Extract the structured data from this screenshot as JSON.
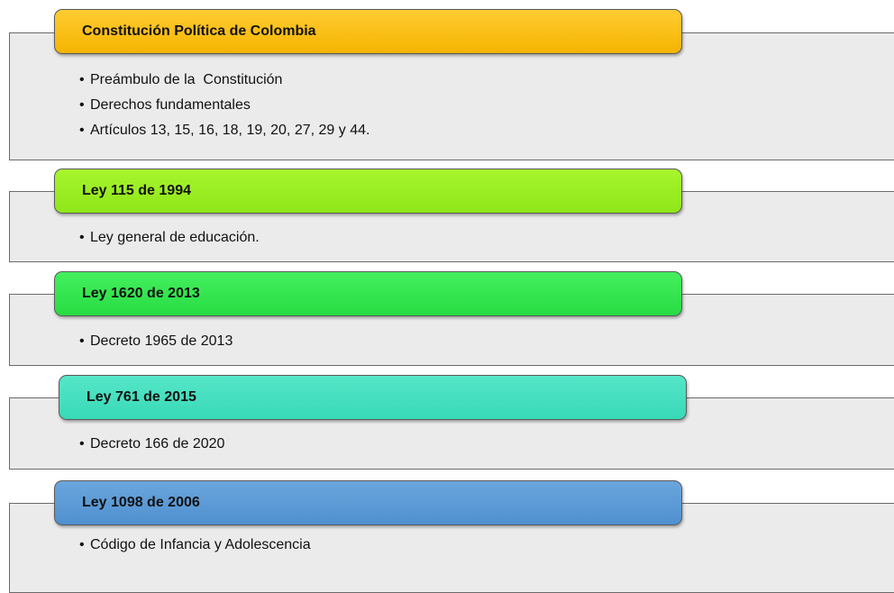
{
  "sections": [
    {
      "title": "Constitución Política de Colombia",
      "items": [
        "Preámbulo de la  Constitución",
        "Derechos fundamentales",
        "Artículos 13, 15, 16, 18, 19, 20, 27, 29 y 44."
      ]
    },
    {
      "title": "Ley 115 de 1994",
      "items": [
        "Ley general de educación."
      ]
    },
    {
      "title": "Ley 1620 de 2013",
      "items": [
        "Decreto 1965 de 2013"
      ]
    },
    {
      "title": "Ley 761 de 2015",
      "items": [
        "Decreto 166 de 2020"
      ]
    },
    {
      "title": "Ley 1098 de 2006",
      "items": [
        "Código de Infancia y Adolescencia"
      ]
    }
  ]
}
